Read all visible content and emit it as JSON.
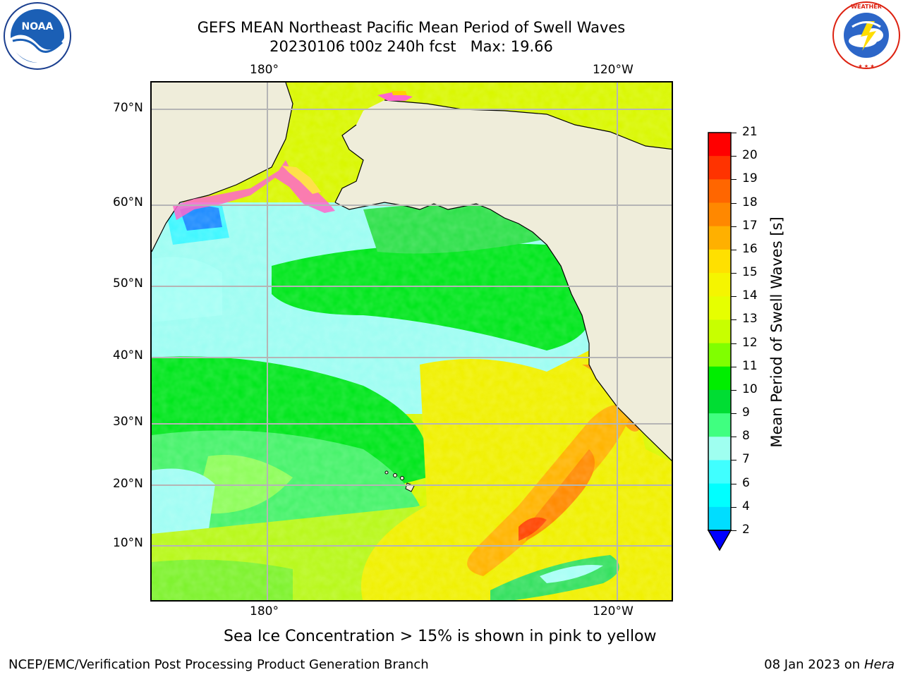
{
  "title": {
    "line1": "GEFS MEAN Northeast Pacific Mean Period of Swell Waves",
    "line2_date": "20230106 t00z 240h fcst",
    "line2_max": "Max: 19.66"
  },
  "logos": {
    "left": "NOAA",
    "right": "NATIONAL WEATHER SERVICE"
  },
  "map": {
    "top_lon_labels": [
      "180°",
      "120°W"
    ],
    "bottom_lon_labels": [
      "180°",
      "120°W"
    ],
    "lat_labels": [
      "70°N",
      "60°N",
      "50°N",
      "40°N",
      "30°N",
      "20°N",
      "10°N"
    ],
    "land_color": "#efedda",
    "grid_color": "#b5b5b5"
  },
  "colorbar": {
    "label": "Mean Period of Swell Waves [s]",
    "ticks": [
      "21",
      "20",
      "19",
      "18",
      "17",
      "16",
      "15",
      "14",
      "13",
      "12",
      "11",
      "10",
      "9",
      "8",
      "7",
      "6",
      "4",
      "2"
    ],
    "colors": [
      "#ff0000",
      "#ff3300",
      "#ff6600",
      "#ff8800",
      "#ffb000",
      "#ffe000",
      "#f5f500",
      "#e6ff00",
      "#c8ff00",
      "#80ff00",
      "#00ee00",
      "#00dd33",
      "#40ff80",
      "#9ffff0",
      "#40ffff",
      "#00ffff",
      "#00ddff",
      "#0080ff",
      "#0000ff"
    ]
  },
  "note": "Sea Ice Concentration > 15% is shown in pink to yellow",
  "footer": {
    "left": "NCEP/EMC/Verification Post Processing Product Generation Branch",
    "right_date": "08 Jan 2023 on",
    "right_host": "Hera"
  }
}
